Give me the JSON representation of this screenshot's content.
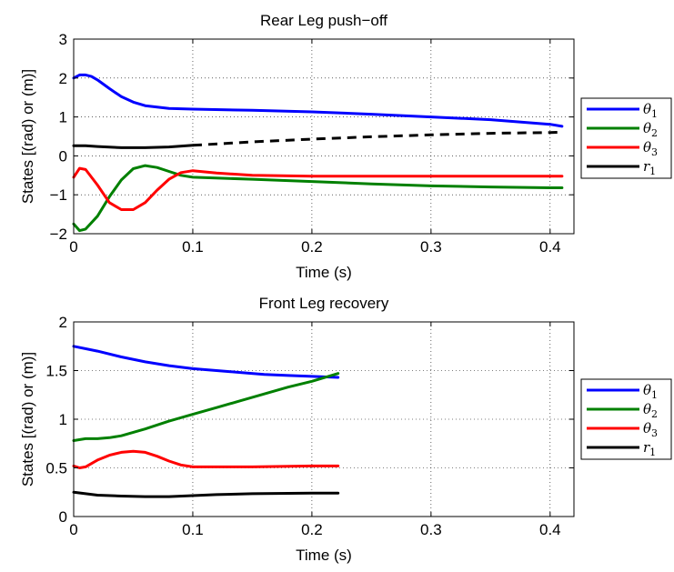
{
  "chart_data": [
    {
      "type": "line",
      "title": "Rear Leg push−off",
      "xlabel": "Time (s)",
      "ylabel": "States [(rad) or (m)]",
      "xlim": [
        0,
        0.42
      ],
      "ylim": [
        -2,
        3
      ],
      "xticks": [
        0,
        0.1,
        0.2,
        0.3,
        0.4
      ],
      "xtick_labels": [
        "0",
        "0.1",
        "0.2",
        "0.3",
        "0.4"
      ],
      "yticks": [
        -2,
        -1,
        0,
        1,
        2,
        3
      ],
      "ytick_labels": [
        "−2",
        "−1",
        "0",
        "1",
        "2",
        "3"
      ],
      "grid": true,
      "legend_position": "outside-right",
      "series": [
        {
          "name": "θ1",
          "color": "#0000ff",
          "x": [
            0,
            0.005,
            0.01,
            0.015,
            0.02,
            0.03,
            0.04,
            0.05,
            0.06,
            0.08,
            0.1,
            0.15,
            0.2,
            0.25,
            0.3,
            0.35,
            0.4,
            0.41
          ],
          "y": [
            2.0,
            2.08,
            2.08,
            2.04,
            1.95,
            1.73,
            1.52,
            1.38,
            1.29,
            1.22,
            1.2,
            1.17,
            1.13,
            1.07,
            1.0,
            0.93,
            0.81,
            0.76
          ]
        },
        {
          "name": "θ2",
          "color": "#008000",
          "x": [
            0,
            0.005,
            0.01,
            0.02,
            0.03,
            0.04,
            0.05,
            0.06,
            0.07,
            0.08,
            0.09,
            0.1,
            0.15,
            0.2,
            0.25,
            0.3,
            0.35,
            0.4,
            0.41
          ],
          "y": [
            -1.75,
            -1.92,
            -1.88,
            -1.55,
            -1.05,
            -0.62,
            -0.33,
            -0.25,
            -0.3,
            -0.4,
            -0.5,
            -0.55,
            -0.6,
            -0.66,
            -0.72,
            -0.77,
            -0.8,
            -0.82,
            -0.82
          ]
        },
        {
          "name": "θ3",
          "color": "#ff0000",
          "x": [
            0,
            0.005,
            0.01,
            0.02,
            0.03,
            0.04,
            0.05,
            0.06,
            0.07,
            0.08,
            0.09,
            0.1,
            0.12,
            0.15,
            0.2,
            0.3,
            0.4,
            0.41
          ],
          "y": [
            -0.55,
            -0.32,
            -0.35,
            -0.75,
            -1.2,
            -1.38,
            -1.38,
            -1.2,
            -0.88,
            -0.6,
            -0.43,
            -0.38,
            -0.44,
            -0.5,
            -0.52,
            -0.52,
            -0.52,
            -0.52
          ]
        },
        {
          "name": "r1",
          "color": "#000000",
          "x": [
            0,
            0.01,
            0.02,
            0.04,
            0.06,
            0.08,
            0.1
          ],
          "y": [
            0.26,
            0.26,
            0.24,
            0.21,
            0.21,
            0.23,
            0.27
          ]
        },
        {
          "name": "",
          "color": "#000000",
          "dashed": true,
          "x": [
            0.1,
            0.15,
            0.2,
            0.25,
            0.3,
            0.35,
            0.4,
            0.41
          ],
          "y": [
            0.27,
            0.36,
            0.43,
            0.49,
            0.54,
            0.58,
            0.6,
            0.61
          ]
        }
      ]
    },
    {
      "type": "line",
      "title": "Front Leg recovery",
      "xlabel": "Time (s)",
      "ylabel": "States [(rad) or (m)]",
      "xlim": [
        0,
        0.42
      ],
      "ylim": [
        0,
        2
      ],
      "xticks": [
        0,
        0.1,
        0.2,
        0.3,
        0.4
      ],
      "xtick_labels": [
        "0",
        "0.1",
        "0.2",
        "0.3",
        "0.4"
      ],
      "yticks": [
        0,
        0.5,
        1,
        1.5,
        2
      ],
      "ytick_labels": [
        "0",
        "0.5",
        "1",
        "1.5",
        "2"
      ],
      "grid": true,
      "legend_position": "outside-right",
      "series": [
        {
          "name": "θ1",
          "color": "#0000ff",
          "x": [
            0,
            0.02,
            0.04,
            0.06,
            0.08,
            0.1,
            0.12,
            0.14,
            0.16,
            0.18,
            0.2,
            0.222
          ],
          "y": [
            1.75,
            1.7,
            1.64,
            1.59,
            1.55,
            1.52,
            1.5,
            1.48,
            1.46,
            1.45,
            1.44,
            1.43
          ]
        },
        {
          "name": "θ2",
          "color": "#008000",
          "x": [
            0,
            0.01,
            0.02,
            0.03,
            0.04,
            0.06,
            0.08,
            0.1,
            0.12,
            0.14,
            0.16,
            0.18,
            0.2,
            0.222
          ],
          "y": [
            0.78,
            0.8,
            0.8,
            0.81,
            0.83,
            0.9,
            0.98,
            1.05,
            1.12,
            1.19,
            1.26,
            1.33,
            1.39,
            1.47
          ]
        },
        {
          "name": "θ3",
          "color": "#ff0000",
          "x": [
            0,
            0.005,
            0.01,
            0.02,
            0.03,
            0.04,
            0.05,
            0.06,
            0.07,
            0.08,
            0.09,
            0.1,
            0.12,
            0.15,
            0.2,
            0.222
          ],
          "y": [
            0.52,
            0.5,
            0.51,
            0.58,
            0.63,
            0.66,
            0.67,
            0.66,
            0.62,
            0.57,
            0.53,
            0.51,
            0.51,
            0.51,
            0.52,
            0.52
          ]
        },
        {
          "name": "r1",
          "color": "#000000",
          "x": [
            0,
            0.02,
            0.04,
            0.06,
            0.08,
            0.1,
            0.12,
            0.15,
            0.2,
            0.222
          ],
          "y": [
            0.25,
            0.22,
            0.21,
            0.205,
            0.205,
            0.215,
            0.225,
            0.235,
            0.24,
            0.24
          ]
        }
      ]
    }
  ]
}
